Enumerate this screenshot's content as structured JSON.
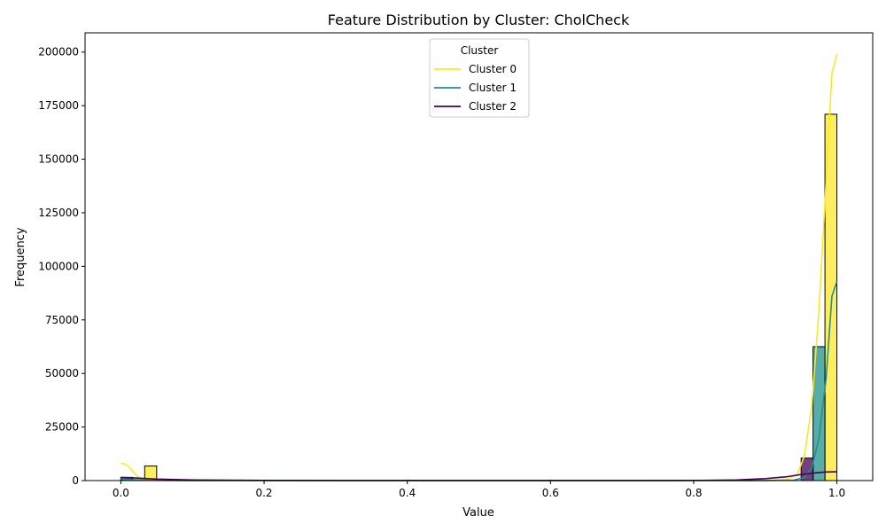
{
  "chart_data": {
    "type": "bar",
    "title": "Feature Distribution by Cluster: CholCheck",
    "xlabel": "Value",
    "ylabel": "Frequency",
    "xlim": [
      -0.05,
      1.05
    ],
    "ylim": [
      0,
      209000
    ],
    "xticks": [
      0.0,
      0.2,
      0.4,
      0.6,
      0.8,
      1.0
    ],
    "xtick_labels": [
      "0.0",
      "0.2",
      "0.4",
      "0.6",
      "0.8",
      "1.0"
    ],
    "yticks": [
      0,
      25000,
      50000,
      75000,
      100000,
      125000,
      150000,
      175000,
      200000
    ],
    "ytick_labels": [
      "0",
      "25000",
      "50000",
      "75000",
      "100000",
      "125000",
      "150000",
      "175000",
      "200000"
    ],
    "grid": false,
    "legend": {
      "title": "Cluster",
      "placement": "upper center"
    },
    "series": [
      {
        "name": "Cluster 0",
        "color": "#fde725",
        "bars": [
          {
            "x0": 0.0,
            "x1": 0.0167,
            "value": 500
          },
          {
            "x0": 0.0333,
            "x1": 0.05,
            "value": 6800
          },
          {
            "x0": 0.9833,
            "x1": 1.0,
            "value": 171000
          }
        ],
        "kde": {
          "x": [
            0.0,
            0.005,
            0.01,
            0.015,
            0.02,
            0.025,
            0.03,
            0.04,
            0.05,
            0.06,
            0.08,
            0.1,
            0.3,
            0.5,
            0.7,
            0.9,
            0.93,
            0.945,
            0.955,
            0.965,
            0.975,
            0.985,
            0.993,
            1.0
          ],
          "y": [
            8000,
            7800,
            6800,
            5000,
            3000,
            1600,
            800,
            300,
            150,
            80,
            30,
            10,
            0,
            0,
            0,
            10,
            400,
            3000,
            12000,
            35000,
            80000,
            140000,
            190000,
            199000
          ]
        }
      },
      {
        "name": "Cluster 1",
        "color": "#21918c",
        "bars": [
          {
            "x0": 0.0,
            "x1": 0.0167,
            "value": 800
          },
          {
            "x0": 0.9667,
            "x1": 0.9833,
            "value": 62500
          }
        ],
        "kde": {
          "x": [
            0.0,
            0.01,
            0.02,
            0.04,
            0.1,
            0.3,
            0.5,
            0.7,
            0.9,
            0.94,
            0.955,
            0.965,
            0.975,
            0.985,
            0.993,
            1.0
          ],
          "y": [
            700,
            600,
            400,
            150,
            20,
            0,
            0,
            0,
            20,
            200,
            1500,
            6000,
            20000,
            48000,
            86000,
            93000
          ]
        }
      },
      {
        "name": "Cluster 2",
        "color": "#440154",
        "bars": [
          {
            "x0": 0.0,
            "x1": 0.0167,
            "value": 1500
          },
          {
            "x0": 0.0333,
            "x1": 0.05,
            "value": 300
          },
          {
            "x0": 0.95,
            "x1": 0.9667,
            "value": 10500
          }
        ],
        "kde": {
          "x": [
            0.0,
            0.02,
            0.05,
            0.1,
            0.2,
            0.4,
            0.6,
            0.8,
            0.86,
            0.9,
            0.93,
            0.95,
            0.97,
            0.985,
            1.0
          ],
          "y": [
            1500,
            1200,
            700,
            300,
            80,
            10,
            10,
            50,
            300,
            900,
            1800,
            2800,
            3600,
            4000,
            4100
          ]
        }
      }
    ]
  }
}
